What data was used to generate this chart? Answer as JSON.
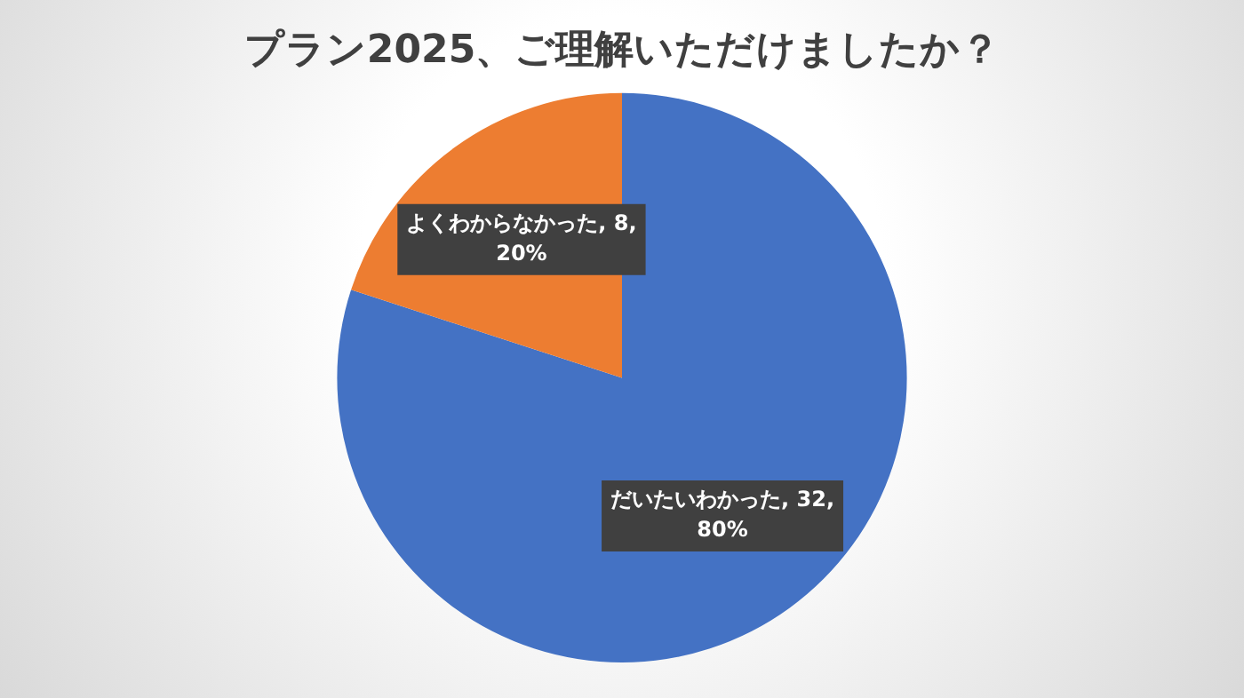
{
  "chart_data": {
    "type": "pie",
    "title": "プラン2025、ご理解いただけましたか？",
    "categories": [
      "だいたいわかった",
      "よくわからなかった"
    ],
    "values": [
      32,
      8
    ],
    "colors": [
      "#4472c4",
      "#ed7d31"
    ],
    "value_labels": [
      "32, 80%",
      "8, 20%"
    ],
    "legend": false
  }
}
